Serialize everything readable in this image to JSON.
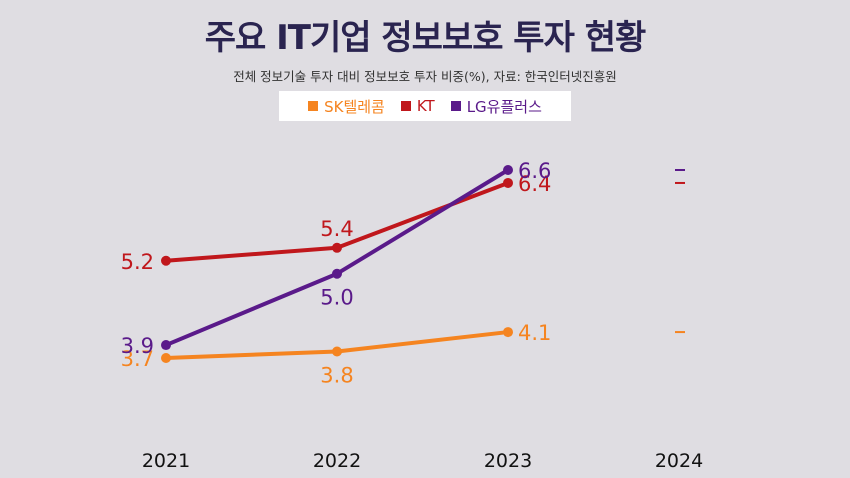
{
  "chart_data": {
    "type": "line",
    "title": "주요 IT기업 정보보호 투자 현황",
    "subtitle": "전체 정보기술 투자 대비 정보보호 투자 비중(%), 자료: 한국인터넷진흥원",
    "categories": [
      "2021",
      "2022",
      "2023",
      "2024"
    ],
    "series": [
      {
        "name": "SK텔레콤",
        "color": "#f58420",
        "values": [
          3.7,
          3.8,
          4.1,
          null
        ],
        "labels": [
          "3.7",
          "3.8",
          "4.1",
          ""
        ]
      },
      {
        "name": "KT",
        "color": "#c0171c",
        "values": [
          5.2,
          5.4,
          6.4,
          null
        ],
        "labels": [
          "5.2",
          "5.4",
          "6.4",
          ""
        ]
      },
      {
        "name": "LG유플러스",
        "color": "#5a1a8a",
        "values": [
          3.9,
          5.0,
          6.6,
          null
        ],
        "labels": [
          "3.9",
          "5.0",
          "6.6",
          ""
        ]
      }
    ],
    "legend_position": "top-center",
    "grid": false
  }
}
